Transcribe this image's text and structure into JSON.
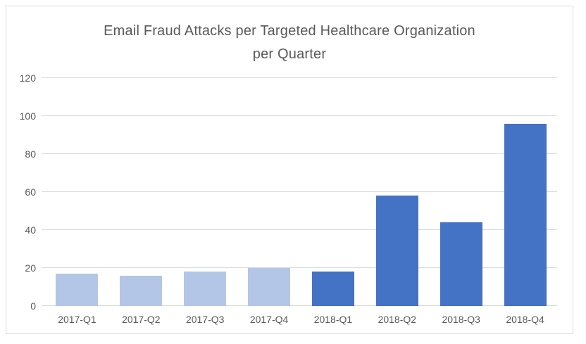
{
  "chart_data": {
    "type": "bar",
    "title": "Email Fraud Attacks per Targeted Healthcare Organization per Quarter",
    "title_lines": [
      "Email Fraud Attacks per Targeted Healthcare Organization",
      "per Quarter"
    ],
    "categories": [
      "2017-Q1",
      "2017-Q2",
      "2017-Q3",
      "2017-Q4",
      "2018-Q1",
      "2018-Q2",
      "2018-Q3",
      "2018-Q4"
    ],
    "values": [
      17,
      16,
      18,
      20,
      18,
      58,
      44,
      96
    ],
    "bar_colors": [
      "#b4c6e7",
      "#b4c6e7",
      "#b4c6e7",
      "#b4c6e7",
      "#4472c4",
      "#4472c4",
      "#4472c4",
      "#4472c4"
    ],
    "xlabel": "",
    "ylabel": "",
    "ylim": [
      0,
      120
    ],
    "yticks": [
      0,
      20,
      40,
      60,
      80,
      100,
      120
    ],
    "grid": true,
    "legend": "none"
  },
  "colors": {
    "light_bar_2017": "#b4c6e7",
    "dark_bar_2018": "#4472c4",
    "gridline": "#d9d9d9",
    "axis_text": "#595959",
    "title_text": "#595959",
    "chart_border": "#d9d9d9",
    "background": "#ffffff"
  }
}
